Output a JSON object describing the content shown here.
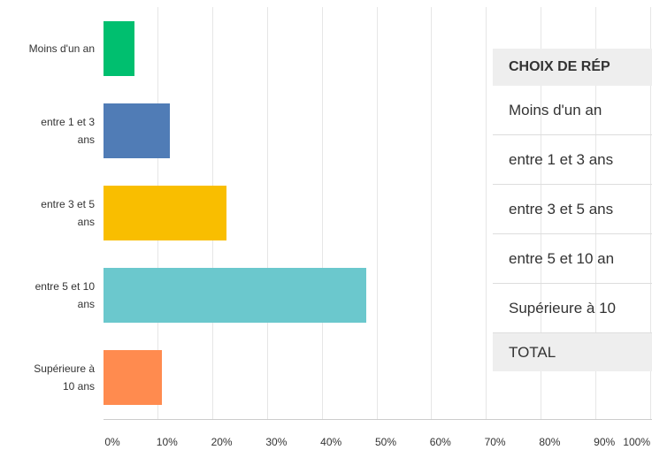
{
  "chart_data": {
    "type": "barh",
    "categories": [
      "Moins d'un an",
      "entre 1 et 3 ans",
      "entre 3 et 5 ans",
      "entre 5 et 10 ans",
      "Supérieure à 10 ans"
    ],
    "values": [
      5.7,
      12.1,
      22.5,
      48.1,
      10.7
    ],
    "colors": [
      "#00bf6f",
      "#507cb6",
      "#f9be00",
      "#6bc8cd",
      "#ff8b4f"
    ],
    "xlim": [
      0,
      100
    ],
    "xticks": [
      {
        "value": 0,
        "label": "0%"
      },
      {
        "value": 10,
        "label": "10%"
      },
      {
        "value": 20,
        "label": "20%"
      },
      {
        "value": 30,
        "label": "30%"
      },
      {
        "value": 40,
        "label": "40%"
      },
      {
        "value": 50,
        "label": "50%"
      },
      {
        "value": 60,
        "label": "60%"
      },
      {
        "value": 70,
        "label": "70%"
      },
      {
        "value": 80,
        "label": "80%"
      },
      {
        "value": 90,
        "label": "90%"
      },
      {
        "value": 100,
        "label": "100%"
      }
    ],
    "grid": true
  },
  "table": {
    "header": "CHOIX DE RÉP",
    "rows": [
      "Moins d'un an",
      "entre 1 et 3 ans",
      "entre 3 et 5 ans",
      "entre 5 et 10 an",
      "Supérieure à 10"
    ],
    "total": "TOTAL"
  }
}
